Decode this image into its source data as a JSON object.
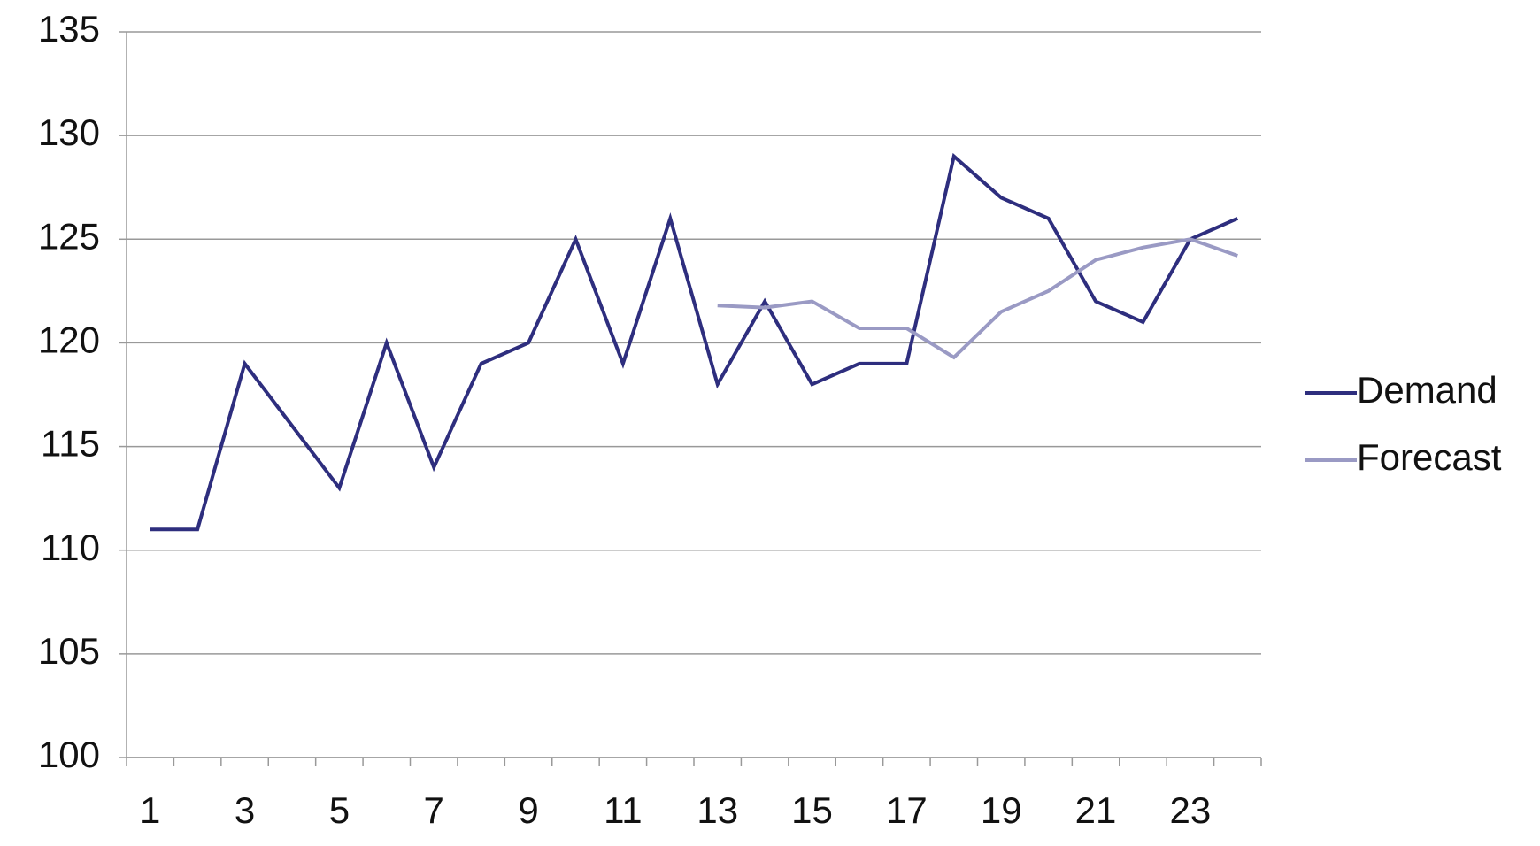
{
  "chart_data": {
    "type": "line",
    "categories": [
      "1",
      null,
      "3",
      null,
      "5",
      null,
      "7",
      null,
      "9",
      null,
      "11",
      null,
      "13",
      null,
      "15",
      null,
      "17",
      null,
      "19",
      null,
      "21",
      null,
      "23",
      null
    ],
    "series": [
      {
        "name": "Demand",
        "color": "#2e2e7e",
        "values": [
          111,
          111,
          119,
          116,
          113,
          120,
          114,
          119,
          120,
          125,
          119,
          126,
          118,
          122,
          118,
          119,
          119,
          129,
          127,
          126,
          122,
          121,
          125,
          126
        ]
      },
      {
        "name": "Forecast",
        "color": "#9a9ac4",
        "values": [
          null,
          null,
          null,
          null,
          null,
          null,
          null,
          null,
          null,
          null,
          null,
          null,
          121.8,
          121.7,
          122.0,
          120.7,
          120.7,
          119.3,
          121.5,
          122.5,
          124.0,
          124.6,
          125.0,
          124.2
        ]
      }
    ],
    "ylim": [
      100,
      135
    ],
    "yticks": [
      100,
      105,
      110,
      115,
      120,
      125,
      130,
      135
    ],
    "grid": true,
    "legend": "right"
  }
}
